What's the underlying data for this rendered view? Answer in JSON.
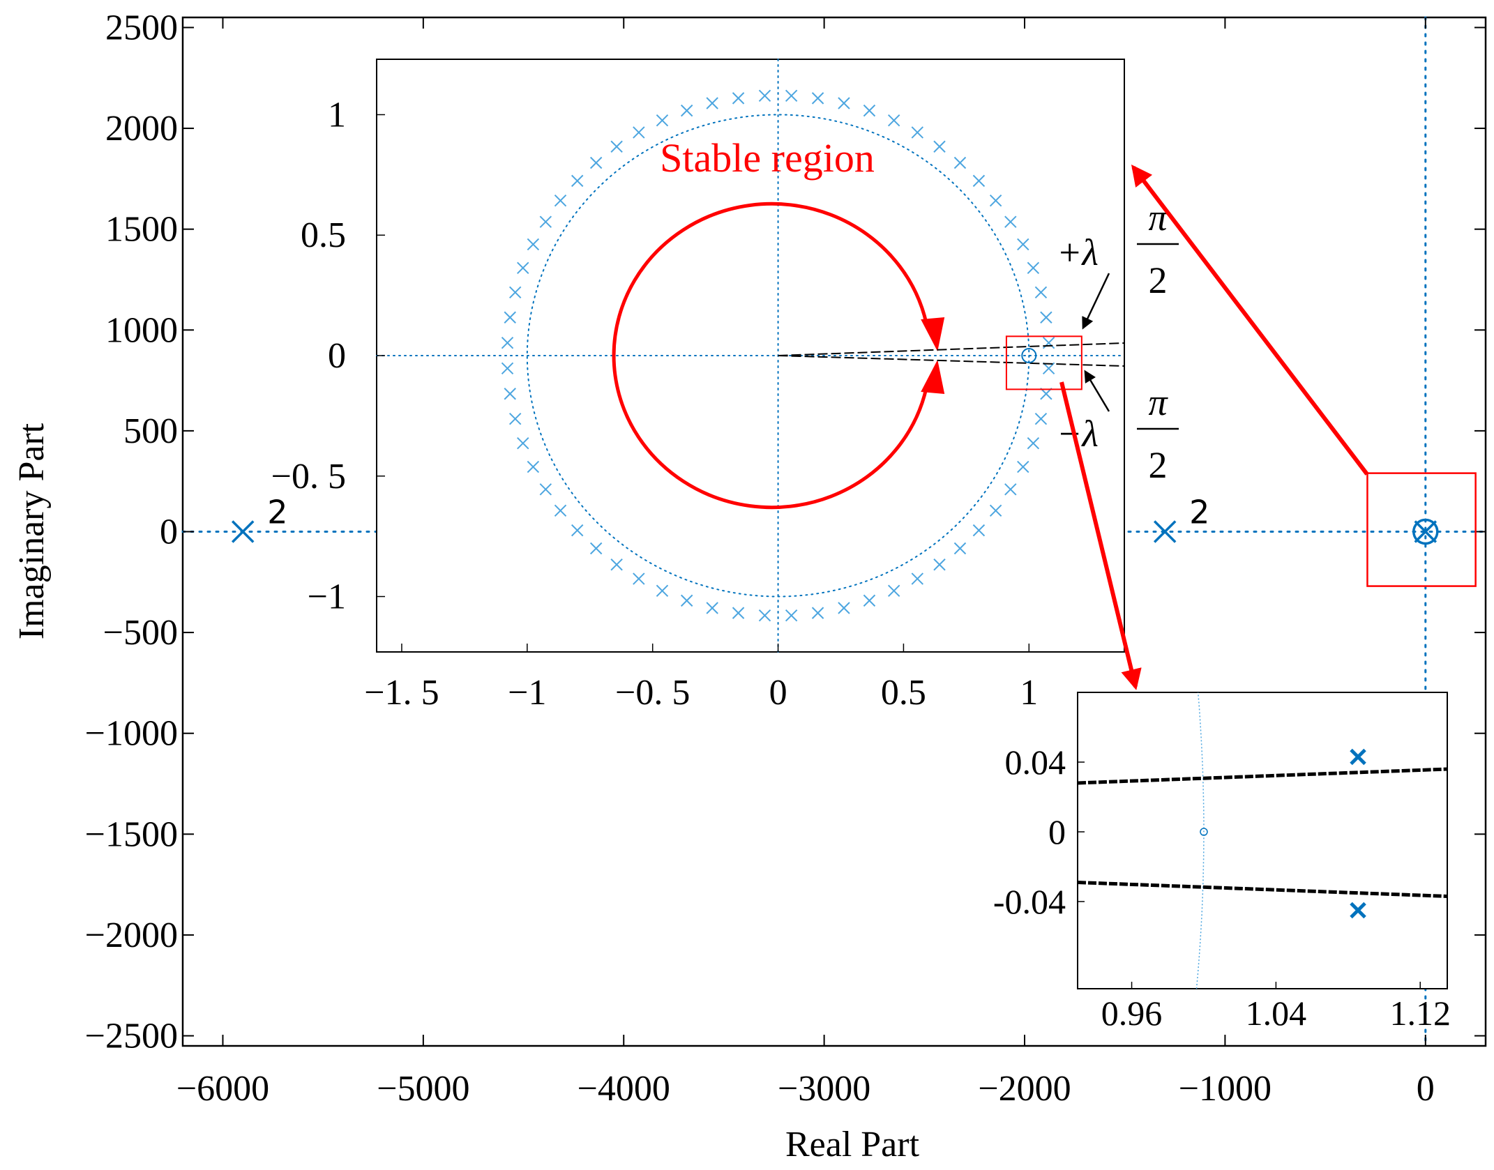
{
  "colors": {
    "blue": "#0072BD",
    "light_blue": "#4DA6E0",
    "red": "#FF0000",
    "black": "#000000"
  },
  "chart_data": [
    {
      "id": "main",
      "type": "scatter",
      "title": "",
      "xlabel": "Real Part",
      "ylabel": "Imaginary Part",
      "xlim": [
        -6200,
        300
      ],
      "ylim": [
        -2550,
        2550
      ],
      "xticks": [
        -6000,
        -5000,
        -4000,
        -3000,
        -2000,
        -1000,
        0
      ],
      "xtick_labels": [
        "−6000",
        "−5000",
        "−4000",
        "−3000",
        "−2000",
        "−1000",
        "0"
      ],
      "yticks": [
        2500,
        2000,
        1500,
        1000,
        500,
        0,
        -500,
        -1000,
        -1500,
        -2000,
        -2500
      ],
      "ytick_labels": [
        "2500",
        "2000",
        "1500",
        "1000",
        "500",
        "0",
        "−500",
        "−1000",
        "−1500",
        "−2000",
        "−2500"
      ],
      "poles": [
        {
          "x": -5900,
          "y": 0,
          "multiplicity": "2"
        },
        {
          "x": -1300,
          "y": 0,
          "multiplicity": "2"
        },
        {
          "x": 0,
          "y": 0,
          "multiplicity": ""
        }
      ],
      "zeros": [
        {
          "x": 0,
          "y": 0
        }
      ],
      "highlight_box": {
        "x": [
          -290,
          250
        ],
        "y": [
          -270,
          290
        ]
      }
    },
    {
      "id": "inset_unit_circle",
      "type": "scatter",
      "xlim": [
        -1.6,
        1.38
      ],
      "ylim": [
        -1.23,
        1.23
      ],
      "xticks": [
        -1.5,
        -1,
        -0.5,
        0,
        0.5,
        1
      ],
      "xtick_labels": [
        "−1. 5",
        "−1",
        "−0. 5",
        "0",
        "0.5",
        "1"
      ],
      "yticks": [
        1,
        0.5,
        0,
        -0.5,
        -1
      ],
      "ytick_labels": [
        "1",
        "0.5",
        "0",
        "−0. 5",
        "−1"
      ],
      "annotation": "Stable region",
      "unit_circle_radius": 1,
      "pole_ring": {
        "radius_x": 1.08,
        "radius_y": 1.08,
        "count": 64
      },
      "stable_region_radius": 0.63,
      "zero": {
        "x": 1.0,
        "y": 0
      },
      "highlight_box": {
        "x": [
          0.91,
          1.21
        ],
        "y": [
          0.08,
          -0.14
        ]
      },
      "lambda_labels": {
        "upper_prefix": "+λ",
        "lower_prefix": "−λ",
        "numerator": "π",
        "denominator": "2"
      }
    },
    {
      "id": "inset_zoom",
      "type": "scatter",
      "xlim": [
        0.93,
        1.135
      ],
      "ylim": [
        -0.09,
        0.08
      ],
      "xticks": [
        0.96,
        1.04,
        1.12
      ],
      "xtick_labels": [
        "0.96",
        "1.04",
        "1.12"
      ],
      "yticks": [
        0.04,
        0,
        -0.04
      ],
      "ytick_labels": [
        "0.04",
        "0",
        "-0.04"
      ],
      "poles": [
        {
          "x": 1.0855,
          "y": 0.043
        },
        {
          "x": 1.0855,
          "y": -0.045
        }
      ],
      "zero": {
        "x": 1.0,
        "y": 0
      },
      "lambda_lines": [
        {
          "x": [
            0.93,
            1.135
          ],
          "y": [
            0.028,
            0.036
          ]
        },
        {
          "x": [
            0.93,
            1.135
          ],
          "y": [
            -0.029,
            -0.037
          ]
        }
      ]
    }
  ]
}
